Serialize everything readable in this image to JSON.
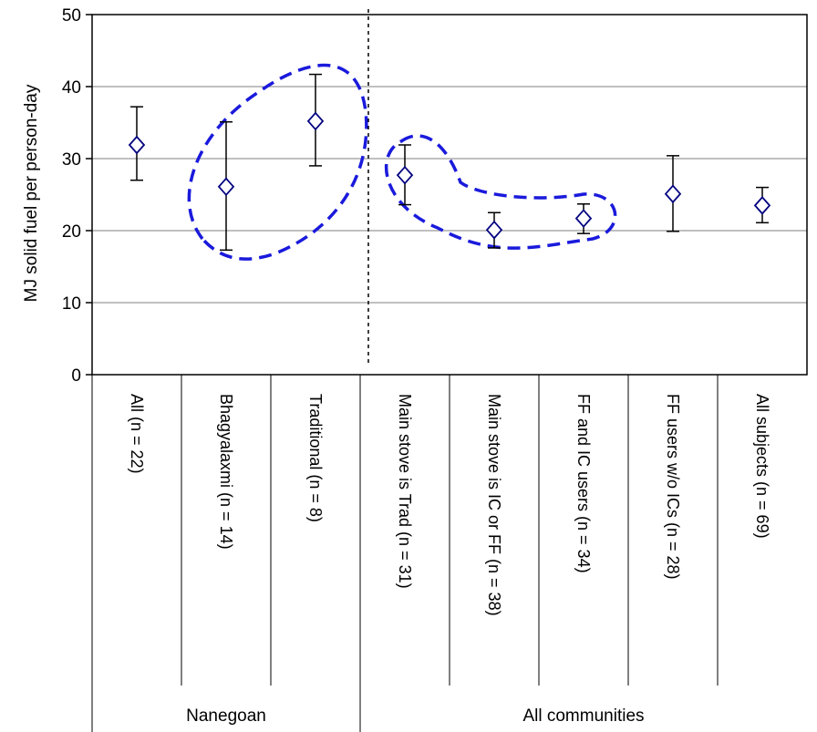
{
  "chart_data": {
    "type": "scatter",
    "ylabel": "MJ solid fuel per person-day",
    "ylim": [
      0,
      50
    ],
    "yticks": [
      0,
      10,
      20,
      30,
      40,
      50
    ],
    "grid": true,
    "categories": [
      "All (n = 22)",
      "Bhagyalaxmi  (n = 14)",
      "Traditional  (n = 8)",
      "Main stove is Trad (n = 31)",
      "Main stove is IC or FF (n = 38)",
      "FF and IC users (n = 34)",
      "FF users w/o ICs (n = 28)",
      "All subjects (n = 69)"
    ],
    "groups": [
      {
        "label": "Nanegoan",
        "categories": [
          0,
          1,
          2
        ]
      },
      {
        "label": "All communities",
        "categories": [
          3,
          4,
          5,
          6,
          7
        ]
      }
    ],
    "series": [
      {
        "values": [
          31.9,
          26.1,
          35.2,
          27.7,
          20.1,
          21.7,
          25.1,
          23.5
        ],
        "err_low": [
          27.0,
          17.3,
          29.0,
          23.6,
          17.6,
          19.6,
          19.9,
          21.1
        ],
        "err_high": [
          37.2,
          35.1,
          41.7,
          31.9,
          22.5,
          23.7,
          30.4,
          26.0
        ]
      }
    ],
    "marker_color": "#000080",
    "annotation_color": "#1a1adc"
  }
}
